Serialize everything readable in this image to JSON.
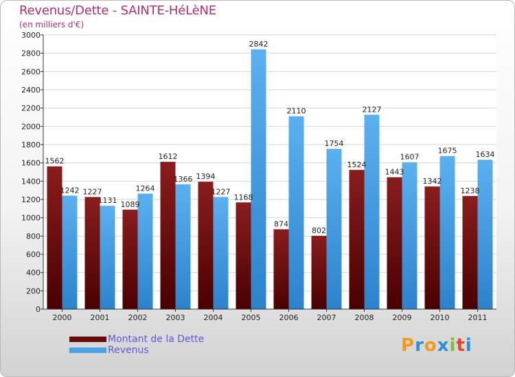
{
  "header": {
    "title": "Revenus/Dette - SAINTE-HéLèNE",
    "subtitle": "(en milliers d'€)"
  },
  "legend": {
    "items": [
      {
        "label": "Montant de la Dette",
        "color": "#6b0a0a"
      },
      {
        "label": "Revenus",
        "color": "#4aa2e6"
      }
    ]
  },
  "logo": {
    "text": "Proxiti",
    "letters": [
      "P",
      "r",
      "o",
      "x",
      "i",
      "t",
      "i"
    ],
    "colors": [
      "#f29a1e",
      "#2a8fd8",
      "#f29a1e",
      "#2a8fd8",
      "#7abf3c",
      "#e8412c",
      "#2a8fd8"
    ]
  },
  "chart_data": {
    "type": "bar",
    "title": "Revenus/Dette - SAINTE-HéLèNE",
    "subtitle": "(en milliers d'€)",
    "categories": [
      "2000",
      "2001",
      "2002",
      "2003",
      "2004",
      "2005",
      "2006",
      "2007",
      "2008",
      "2009",
      "2010",
      "2011"
    ],
    "series": [
      {
        "name": "Montant de la Dette",
        "color": "#6b0a0a",
        "values": [
          1562,
          1227,
          1089,
          1612,
          1394,
          1168,
          874,
          802,
          1524,
          1443,
          1342,
          1238
        ]
      },
      {
        "name": "Revenus",
        "color": "#4aa2e6",
        "values": [
          1242,
          1131,
          1264,
          1366,
          1227,
          2842,
          2110,
          1754,
          2127,
          1607,
          1675,
          1634
        ]
      }
    ],
    "ylim": [
      0,
      3000
    ],
    "ytick_step": 200,
    "grid": true,
    "legend_position": "bottom-left"
  }
}
